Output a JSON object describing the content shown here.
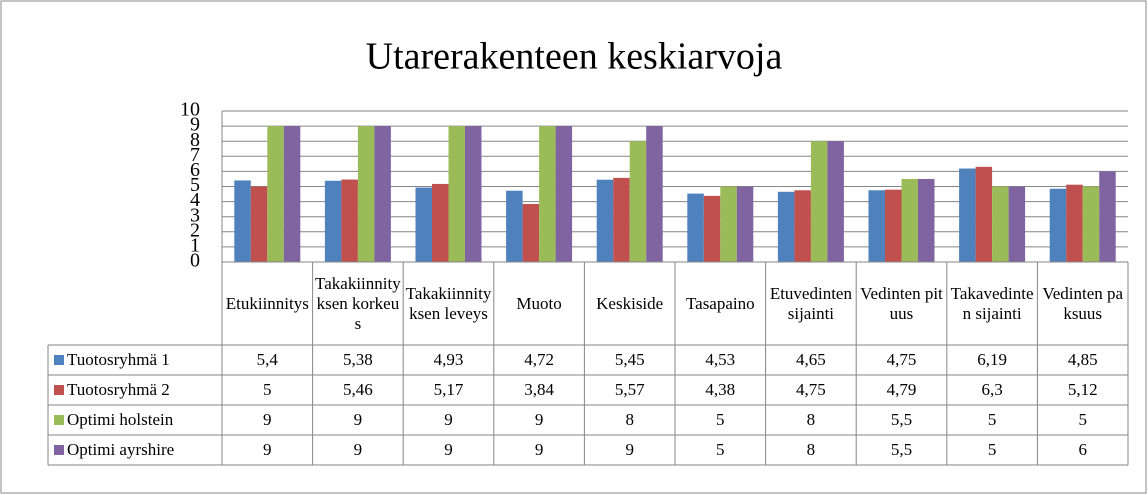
{
  "chart_data": {
    "type": "bar",
    "title": "Utarerakenteen keskiarvoja",
    "categories": [
      "Etukiinnitys",
      "Takakiinnityksen korkeus",
      "Takakiinnityksen leveys",
      "Muoto",
      "Keskiside",
      "Tasapaino",
      "Etuvedinten sijainti",
      "Vedinten pituus",
      "Takavedinten sijainti",
      "Vedinten paksuus"
    ],
    "series": [
      {
        "name": "Tuotosryhmä 1",
        "color": "#4f81bd",
        "values": [
          5.4,
          5.38,
          4.93,
          4.72,
          5.45,
          4.53,
          4.65,
          4.75,
          6.19,
          4.85
        ],
        "value_labels": [
          "5,4",
          "5,38",
          "4,93",
          "4,72",
          "5,45",
          "4,53",
          "4,65",
          "4,75",
          "6,19",
          "4,85"
        ]
      },
      {
        "name": "Tuotosryhmä 2",
        "color": "#c0504d",
        "values": [
          5,
          5.46,
          5.17,
          3.84,
          5.57,
          4.38,
          4.75,
          4.79,
          6.3,
          5.12
        ],
        "value_labels": [
          "5",
          "5,46",
          "5,17",
          "3,84",
          "5,57",
          "4,38",
          "4,75",
          "4,79",
          "6,3",
          "5,12"
        ]
      },
      {
        "name": "Optimi holstein",
        "color": "#9bbb59",
        "values": [
          9,
          9,
          9,
          9,
          8,
          5,
          8,
          5.5,
          5,
          5
        ],
        "value_labels": [
          "9",
          "9",
          "9",
          "9",
          "8",
          "5",
          "8",
          "5,5",
          "5",
          "5"
        ]
      },
      {
        "name": "Optimi ayrshire",
        "color": "#8064a2",
        "values": [
          9,
          9,
          9,
          9,
          9,
          5,
          8,
          5.5,
          5,
          6
        ],
        "value_labels": [
          "9",
          "9",
          "9",
          "9",
          "9",
          "5",
          "8",
          "5,5",
          "5",
          "6"
        ]
      }
    ],
    "ylim": [
      0,
      10
    ],
    "yticks": [
      0,
      1,
      2,
      3,
      4,
      5,
      6,
      7,
      8,
      9,
      10
    ],
    "grid": true
  }
}
